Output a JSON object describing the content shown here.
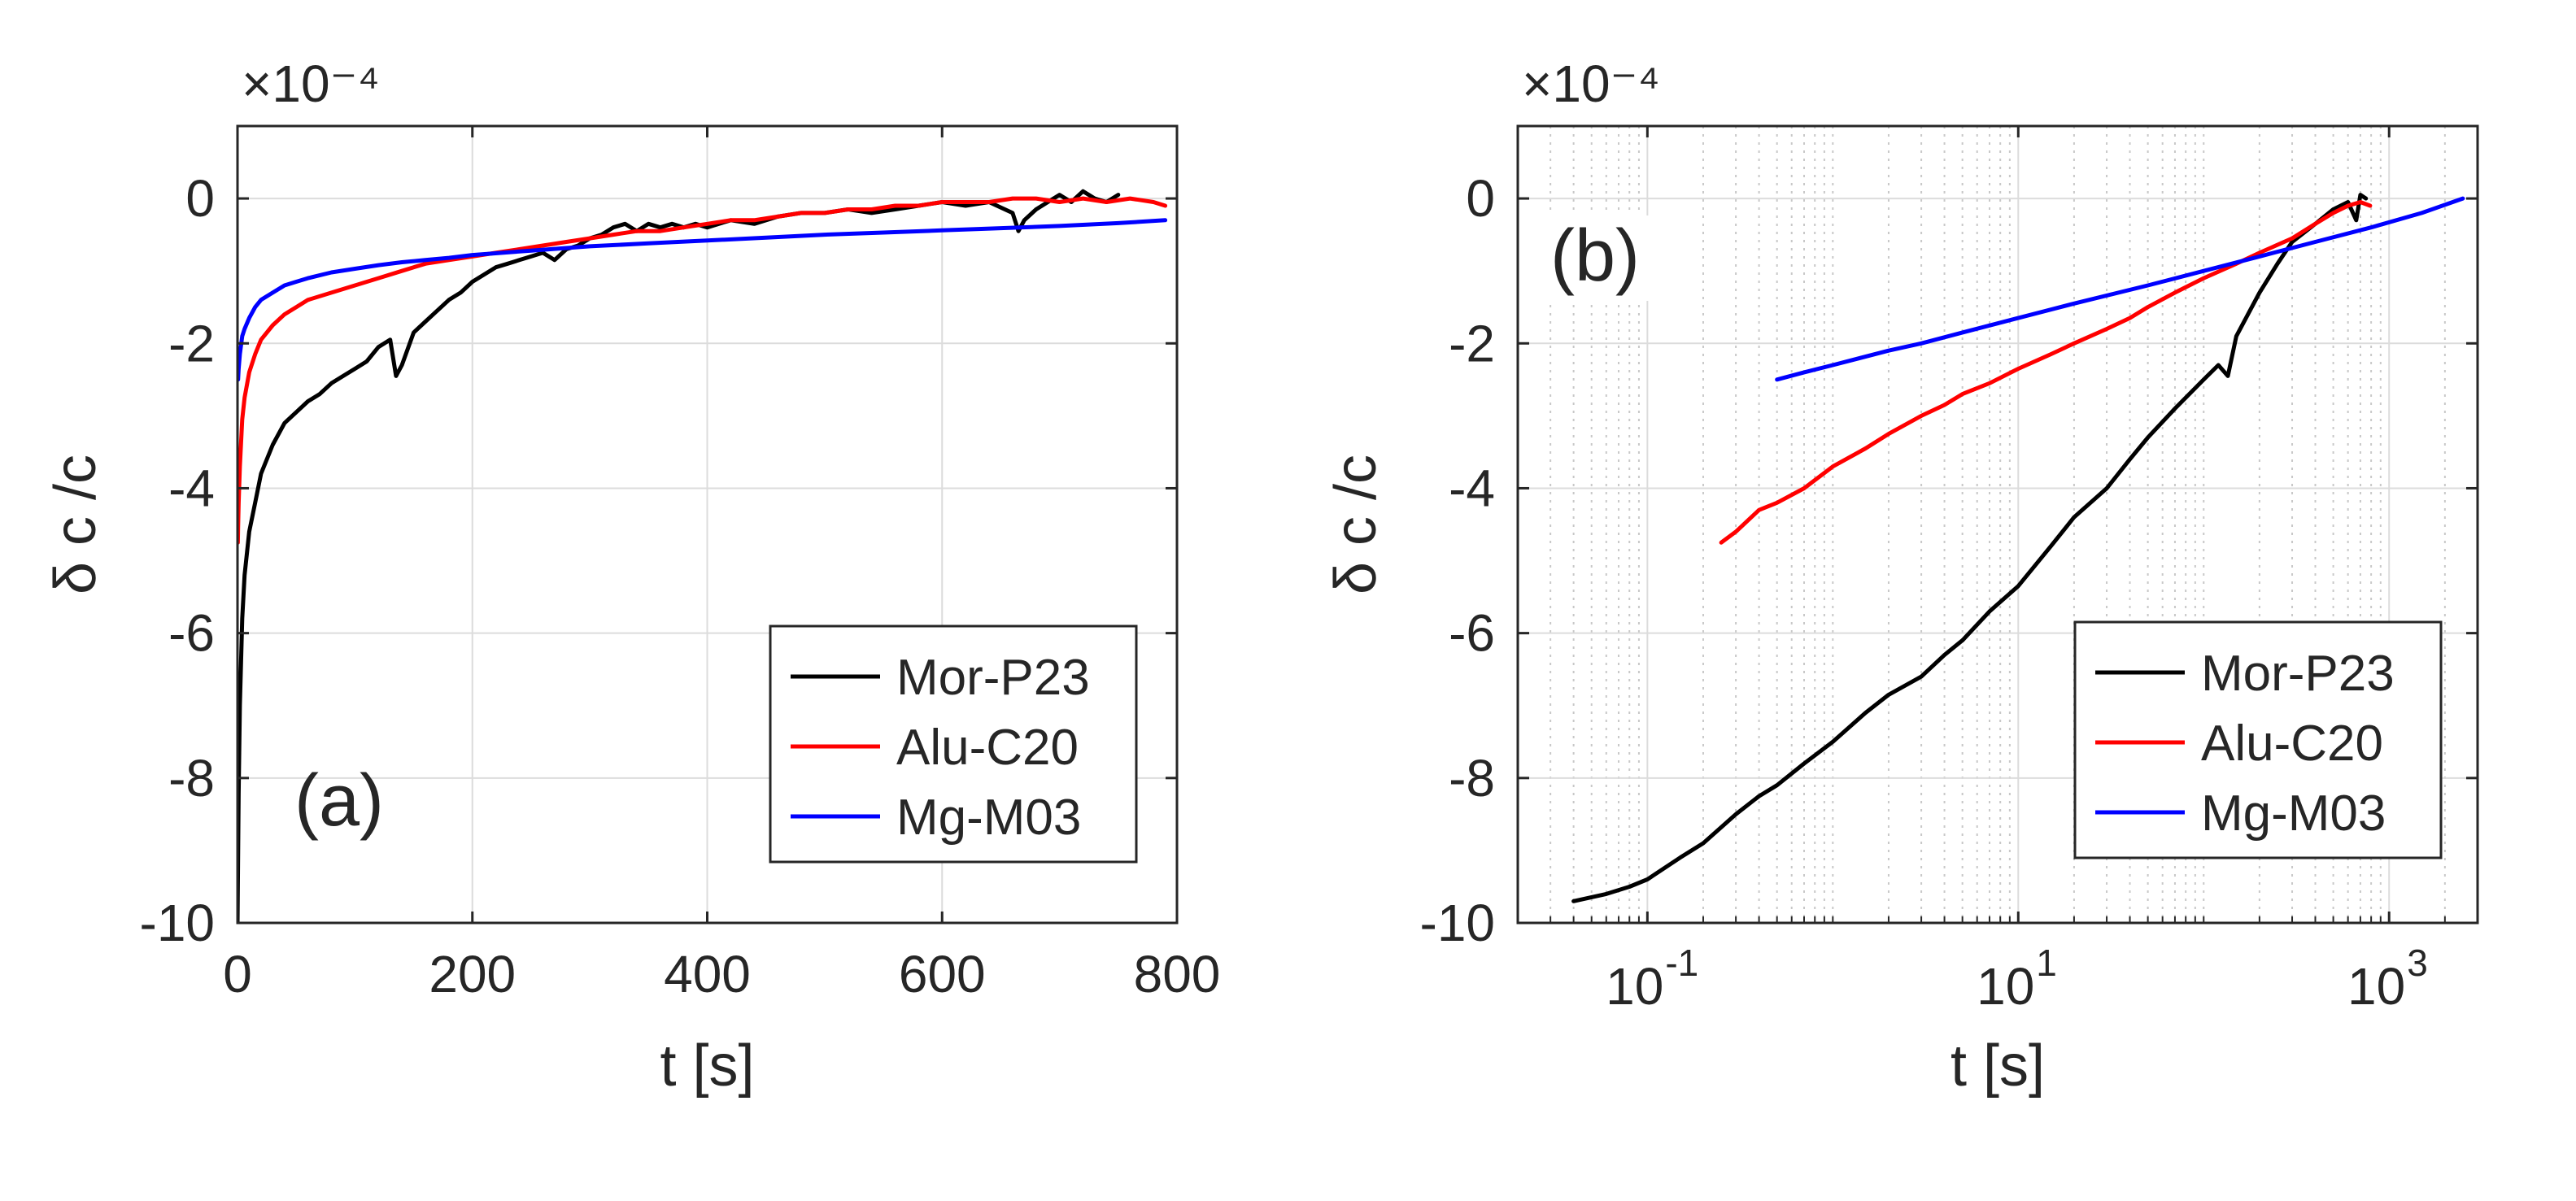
{
  "colors": {
    "background": "#ffffff",
    "axes": "#262626",
    "grid": "#dcdcdc"
  },
  "chart_data": [
    {
      "type": "line",
      "panel_label": "(a)",
      "title": "",
      "xlabel": "t [s]",
      "ylabel": "δ c /c",
      "exponent_label": "×10⁻⁴",
      "xscale": "linear",
      "xlim": [
        0,
        800
      ],
      "ylim": [
        -10,
        1
      ],
      "xticks": [
        0,
        200,
        400,
        600,
        800
      ],
      "xtick_labels": [
        "0",
        "200",
        "400",
        "600",
        "800"
      ],
      "yticks": [
        -10,
        -8,
        -6,
        -4,
        -2,
        0
      ],
      "ytick_labels": [
        "-10",
        "-8",
        "-6",
        "-4",
        "-2",
        "0"
      ],
      "grid": true,
      "legend_position": "bottom-right",
      "series": [
        {
          "name": "Mor-P23",
          "color": "#000000",
          "points": [
            [
              0,
              -10
            ],
            [
              1,
              -8.2
            ],
            [
              2,
              -7.0
            ],
            [
              4,
              -5.8
            ],
            [
              6,
              -5.2
            ],
            [
              10,
              -4.6
            ],
            [
              15,
              -4.2
            ],
            [
              20,
              -3.8
            ],
            [
              30,
              -3.4
            ],
            [
              40,
              -3.1
            ],
            [
              50,
              -2.95
            ],
            [
              60,
              -2.8
            ],
            [
              70,
              -2.7
            ],
            [
              80,
              -2.55
            ],
            [
              90,
              -2.45
            ],
            [
              100,
              -2.35
            ],
            [
              110,
              -2.25
            ],
            [
              120,
              -2.05
            ],
            [
              130,
              -1.95
            ],
            [
              135,
              -2.45
            ],
            [
              140,
              -2.3
            ],
            [
              150,
              -1.85
            ],
            [
              160,
              -1.7
            ],
            [
              170,
              -1.55
            ],
            [
              180,
              -1.4
            ],
            [
              190,
              -1.3
            ],
            [
              200,
              -1.15
            ],
            [
              210,
              -1.05
            ],
            [
              220,
              -0.95
            ],
            [
              230,
              -0.9
            ],
            [
              240,
              -0.85
            ],
            [
              250,
              -0.8
            ],
            [
              260,
              -0.75
            ],
            [
              270,
              -0.85
            ],
            [
              280,
              -0.7
            ],
            [
              290,
              -0.65
            ],
            [
              300,
              -0.55
            ],
            [
              310,
              -0.5
            ],
            [
              320,
              -0.4
            ],
            [
              330,
              -0.35
            ],
            [
              340,
              -0.45
            ],
            [
              350,
              -0.35
            ],
            [
              360,
              -0.4
            ],
            [
              370,
              -0.35
            ],
            [
              380,
              -0.4
            ],
            [
              390,
              -0.35
            ],
            [
              400,
              -0.4
            ],
            [
              420,
              -0.3
            ],
            [
              440,
              -0.35
            ],
            [
              460,
              -0.25
            ],
            [
              480,
              -0.2
            ],
            [
              500,
              -0.2
            ],
            [
              520,
              -0.15
            ],
            [
              540,
              -0.2
            ],
            [
              560,
              -0.15
            ],
            [
              580,
              -0.1
            ],
            [
              600,
              -0.05
            ],
            [
              620,
              -0.1
            ],
            [
              640,
              -0.05
            ],
            [
              660,
              -0.2
            ],
            [
              665,
              -0.45
            ],
            [
              670,
              -0.3
            ],
            [
              680,
              -0.15
            ],
            [
              690,
              -0.05
            ],
            [
              700,
              0.05
            ],
            [
              710,
              -0.05
            ],
            [
              720,
              0.1
            ],
            [
              730,
              0.0
            ],
            [
              740,
              -0.05
            ],
            [
              750,
              0.05
            ]
          ]
        },
        {
          "name": "Alu-C20",
          "color": "#ff0000",
          "points": [
            [
              0.25,
              -4.75
            ],
            [
              0.5,
              -4.55
            ],
            [
              1,
              -4.2
            ],
            [
              2,
              -3.7
            ],
            [
              4,
              -3.05
            ],
            [
              6,
              -2.75
            ],
            [
              10,
              -2.4
            ],
            [
              15,
              -2.15
            ],
            [
              20,
              -1.95
            ],
            [
              30,
              -1.75
            ],
            [
              40,
              -1.6
            ],
            [
              50,
              -1.5
            ],
            [
              60,
              -1.4
            ],
            [
              80,
              -1.3
            ],
            [
              100,
              -1.2
            ],
            [
              120,
              -1.1
            ],
            [
              140,
              -1.0
            ],
            [
              160,
              -0.9
            ],
            [
              180,
              -0.85
            ],
            [
              200,
              -0.8
            ],
            [
              220,
              -0.75
            ],
            [
              240,
              -0.7
            ],
            [
              260,
              -0.65
            ],
            [
              280,
              -0.6
            ],
            [
              300,
              -0.55
            ],
            [
              320,
              -0.5
            ],
            [
              340,
              -0.45
            ],
            [
              360,
              -0.45
            ],
            [
              380,
              -0.4
            ],
            [
              400,
              -0.35
            ],
            [
              420,
              -0.3
            ],
            [
              440,
              -0.3
            ],
            [
              460,
              -0.25
            ],
            [
              480,
              -0.2
            ],
            [
              500,
              -0.2
            ],
            [
              520,
              -0.15
            ],
            [
              540,
              -0.15
            ],
            [
              560,
              -0.1
            ],
            [
              580,
              -0.1
            ],
            [
              600,
              -0.05
            ],
            [
              620,
              -0.05
            ],
            [
              640,
              -0.05
            ],
            [
              660,
              0.0
            ],
            [
              680,
              0.0
            ],
            [
              700,
              -0.05
            ],
            [
              720,
              0.0
            ],
            [
              740,
              -0.05
            ],
            [
              760,
              0.0
            ],
            [
              780,
              -0.05
            ],
            [
              790,
              -0.1
            ]
          ]
        },
        {
          "name": "Mg-M03",
          "color": "#0000ff",
          "points": [
            [
              0.5,
              -2.5
            ],
            [
              1,
              -2.35
            ],
            [
              2,
              -2.15
            ],
            [
              4,
              -1.9
            ],
            [
              6,
              -1.8
            ],
            [
              10,
              -1.65
            ],
            [
              15,
              -1.5
            ],
            [
              20,
              -1.4
            ],
            [
              30,
              -1.3
            ],
            [
              40,
              -1.2
            ],
            [
              50,
              -1.15
            ],
            [
              60,
              -1.1
            ],
            [
              80,
              -1.02
            ],
            [
              100,
              -0.97
            ],
            [
              120,
              -0.92
            ],
            [
              140,
              -0.88
            ],
            [
              160,
              -0.85
            ],
            [
              180,
              -0.82
            ],
            [
              200,
              -0.78
            ],
            [
              250,
              -0.72
            ],
            [
              300,
              -0.66
            ],
            [
              350,
              -0.62
            ],
            [
              400,
              -0.58
            ],
            [
              450,
              -0.54
            ],
            [
              500,
              -0.5
            ],
            [
              550,
              -0.47
            ],
            [
              600,
              -0.44
            ],
            [
              650,
              -0.41
            ],
            [
              700,
              -0.38
            ],
            [
              750,
              -0.34
            ],
            [
              790,
              -0.3
            ]
          ]
        }
      ]
    },
    {
      "type": "line",
      "panel_label": "(b)",
      "title": "",
      "xlabel": "t [s]",
      "ylabel": "δ c /c",
      "exponent_label": "×10⁻⁴",
      "xscale": "log",
      "xlim": [
        0.02,
        3000
      ],
      "ylim": [
        -10,
        1
      ],
      "xticks": [
        0.1,
        10,
        1000
      ],
      "xtick_labels": [
        {
          "base": "10",
          "exp": "-1"
        },
        {
          "base": "10",
          "exp": "1"
        },
        {
          "base": "10",
          "exp": "3"
        }
      ],
      "yticks": [
        -10,
        -8,
        -6,
        -4,
        -2,
        0
      ],
      "ytick_labels": [
        "-10",
        "-8",
        "-6",
        "-4",
        "-2",
        "0"
      ],
      "grid": true,
      "minor_grid": true,
      "legend_position": "bottom-right",
      "series": [
        {
          "name": "Mor-P23",
          "color": "#000000",
          "points": [
            [
              0.04,
              -9.7
            ],
            [
              0.06,
              -9.6
            ],
            [
              0.08,
              -9.5
            ],
            [
              0.1,
              -9.4
            ],
            [
              0.15,
              -9.1
            ],
            [
              0.2,
              -8.9
            ],
            [
              0.3,
              -8.5
            ],
            [
              0.4,
              -8.25
            ],
            [
              0.5,
              -8.1
            ],
            [
              0.7,
              -7.8
            ],
            [
              1,
              -7.5
            ],
            [
              1.5,
              -7.1
            ],
            [
              2,
              -6.85
            ],
            [
              3,
              -6.6
            ],
            [
              4,
              -6.3
            ],
            [
              5,
              -6.1
            ],
            [
              7,
              -5.7
            ],
            [
              10,
              -5.35
            ],
            [
              15,
              -4.8
            ],
            [
              20,
              -4.4
            ],
            [
              30,
              -4.0
            ],
            [
              40,
              -3.6
            ],
            [
              50,
              -3.3
            ],
            [
              70,
              -2.9
            ],
            [
              100,
              -2.5
            ],
            [
              120,
              -2.3
            ],
            [
              135,
              -2.45
            ],
            [
              150,
              -1.9
            ],
            [
              200,
              -1.3
            ],
            [
              250,
              -0.9
            ],
            [
              300,
              -0.6
            ],
            [
              400,
              -0.35
            ],
            [
              500,
              -0.15
            ],
            [
              600,
              -0.05
            ],
            [
              665,
              -0.3
            ],
            [
              700,
              0.05
            ],
            [
              750,
              0.0
            ]
          ]
        },
        {
          "name": "Alu-C20",
          "color": "#ff0000",
          "points": [
            [
              0.25,
              -4.75
            ],
            [
              0.3,
              -4.6
            ],
            [
              0.4,
              -4.3
            ],
            [
              0.5,
              -4.2
            ],
            [
              0.7,
              -4.0
            ],
            [
              1,
              -3.7
            ],
            [
              1.5,
              -3.45
            ],
            [
              2,
              -3.25
            ],
            [
              3,
              -3.0
            ],
            [
              4,
              -2.85
            ],
            [
              5,
              -2.7
            ],
            [
              7,
              -2.55
            ],
            [
              10,
              -2.35
            ],
            [
              15,
              -2.15
            ],
            [
              20,
              -2.0
            ],
            [
              30,
              -1.8
            ],
            [
              40,
              -1.65
            ],
            [
              50,
              -1.5
            ],
            [
              70,
              -1.3
            ],
            [
              100,
              -1.1
            ],
            [
              150,
              -0.9
            ],
            [
              200,
              -0.75
            ],
            [
              300,
              -0.55
            ],
            [
              400,
              -0.35
            ],
            [
              500,
              -0.2
            ],
            [
              600,
              -0.1
            ],
            [
              700,
              -0.05
            ],
            [
              790,
              -0.1
            ]
          ]
        },
        {
          "name": "Mg-M03",
          "color": "#0000ff",
          "points": [
            [
              0.5,
              -2.5
            ],
            [
              0.7,
              -2.4
            ],
            [
              1,
              -2.3
            ],
            [
              2,
              -2.1
            ],
            [
              3,
              -2.0
            ],
            [
              5,
              -1.85
            ],
            [
              10,
              -1.65
            ],
            [
              20,
              -1.45
            ],
            [
              50,
              -1.2
            ],
            [
              100,
              -1.0
            ],
            [
              200,
              -0.8
            ],
            [
              400,
              -0.6
            ],
            [
              800,
              -0.4
            ],
            [
              1500,
              -0.2
            ],
            [
              2500,
              0.0
            ]
          ]
        }
      ]
    }
  ]
}
